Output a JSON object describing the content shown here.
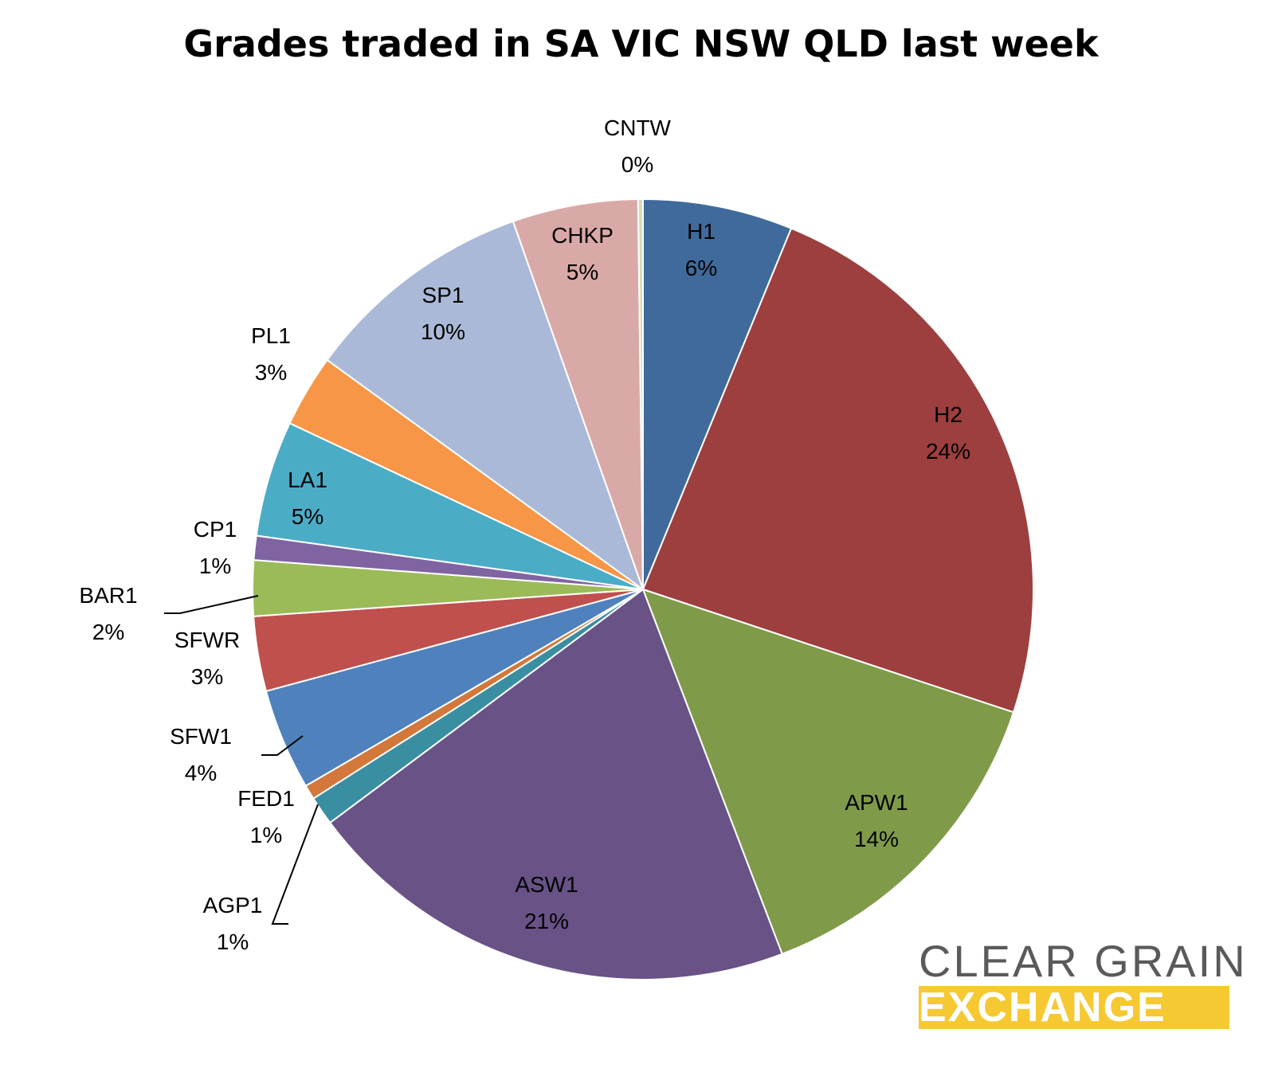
{
  "chart_data": {
    "type": "pie",
    "title": "Grades traded in SA VIC NSW QLD last week",
    "start_angle": "12 o'clock",
    "direction": "clockwise",
    "slices": [
      {
        "label": "H1",
        "value": 6.2,
        "pct_label": "6%",
        "color": "#4f81bd",
        "fill": "#3f6a9b"
      },
      {
        "label": "H2",
        "value": 23.9,
        "pct_label": "24%",
        "color": "#c0504d",
        "fill": "#9c3f3e"
      },
      {
        "label": "APW1",
        "value": 14.1,
        "pct_label": "14%",
        "color": "#9bbb59",
        "fill": "#7f9b49"
      },
      {
        "label": "ASW1",
        "value": 20.6,
        "pct_label": "21%",
        "color": "#8064a2",
        "fill": "#695286"
      },
      {
        "label": "AGP1",
        "value": 1.2,
        "pct_label": "1%",
        "color": "#4bacc6",
        "fill": "#3a8ea2"
      },
      {
        "label": "FED1",
        "value": 0.6,
        "pct_label": "1%",
        "color": "#f79646",
        "fill": "#d3773a"
      },
      {
        "label": "SFW1",
        "value": 4.2,
        "pct_label": "4%",
        "color": "#4f81bd",
        "fill": "#4f81bd"
      },
      {
        "label": "SFWR",
        "value": 3.1,
        "pct_label": "3%",
        "color": "#c0504d",
        "fill": "#c0504d"
      },
      {
        "label": "BAR1",
        "value": 2.3,
        "pct_label": "2%",
        "color": "#9bbb59",
        "fill": "#9bbb59"
      },
      {
        "label": "CP1",
        "value": 1.0,
        "pct_label": "1%",
        "color": "#8064a2",
        "fill": "#8064a2"
      },
      {
        "label": "LA1",
        "value": 4.8,
        "pct_label": "5%",
        "color": "#4bacc6",
        "fill": "#4bacc6"
      },
      {
        "label": "PL1",
        "value": 3.0,
        "pct_label": "3%",
        "color": "#f79646",
        "fill": "#f79646"
      },
      {
        "label": "SP1",
        "value": 9.6,
        "pct_label": "10%",
        "color": "#aab9d7",
        "fill": "#aab9d7"
      },
      {
        "label": "CHKP",
        "value": 5.2,
        "pct_label": "5%",
        "color": "#d9a9a8",
        "fill": "#d9a9a8"
      },
      {
        "label": "CNTW",
        "value": 0.2,
        "pct_label": "0%",
        "color": "#d2e0b2",
        "fill": "#d2e0b2"
      }
    ]
  },
  "logo": {
    "line1": "CLEAR GRAIN",
    "line2": "EXCHANGE",
    "text_color": "#5a5a5a",
    "band_color": "#f6c932"
  }
}
